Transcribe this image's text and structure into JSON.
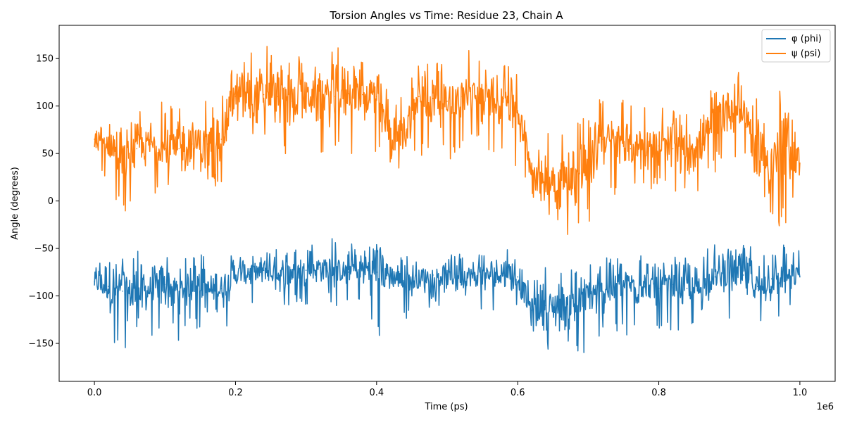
{
  "chart_data": {
    "type": "line",
    "title": "Torsion Angles vs Time: Residue 23, Chain A",
    "xlabel": "Time (ps)",
    "ylabel": "Angle (degrees)",
    "x_offset_label": "1e6",
    "xlim": [
      -0.05,
      1.05
    ],
    "ylim": [
      -190,
      185
    ],
    "x_ticks": [
      0.0,
      0.2,
      0.4,
      0.6,
      0.8,
      1.0
    ],
    "x_tick_labels": [
      "0.0",
      "0.2",
      "0.4",
      "0.6",
      "0.8",
      "1.0"
    ],
    "y_ticks": [
      -150,
      -100,
      -50,
      0,
      50,
      100,
      150
    ],
    "y_tick_labels": [
      "−150",
      "−100",
      "−50",
      "0",
      "50",
      "100",
      "150"
    ],
    "grid": false,
    "legend_position": "top-right",
    "x": [
      0.0,
      0.02,
      0.04,
      0.06,
      0.08,
      0.1,
      0.12,
      0.14,
      0.16,
      0.18,
      0.2,
      0.22,
      0.24,
      0.26,
      0.28,
      0.3,
      0.32,
      0.34,
      0.36,
      0.38,
      0.4,
      0.42,
      0.44,
      0.46,
      0.48,
      0.5,
      0.52,
      0.54,
      0.56,
      0.58,
      0.6,
      0.62,
      0.64,
      0.66,
      0.68,
      0.7,
      0.72,
      0.74,
      0.76,
      0.78,
      0.8,
      0.82,
      0.84,
      0.86,
      0.88,
      0.9,
      0.92,
      0.94,
      0.96,
      0.98,
      1.0
    ],
    "series": [
      {
        "name": "φ (phi)",
        "color": "#1f77b4",
        "values": [
          -85,
          -90,
          -95,
          -100,
          -92,
          -88,
          -95,
          -85,
          -95,
          -92,
          -78,
          -75,
          -73,
          -78,
          -75,
          -73,
          -70,
          -72,
          -75,
          -70,
          -75,
          -78,
          -85,
          -82,
          -78,
          -80,
          -78,
          -80,
          -78,
          -76,
          -80,
          -115,
          -110,
          -112,
          -110,
          -100,
          -95,
          -90,
          -88,
          -90,
          -92,
          -88,
          -92,
          -92,
          -80,
          -75,
          -78,
          -90,
          -82,
          -78,
          -80
        ],
        "min": [
          -130,
          -165,
          -160,
          -170,
          -150,
          -145,
          -150,
          -135,
          -140,
          -150,
          -120,
          -110,
          -115,
          -120,
          -110,
          -110,
          -100,
          -110,
          -115,
          -110,
          -165,
          -120,
          -125,
          -120,
          -110,
          -115,
          -135,
          -120,
          -115,
          -115,
          -120,
          -160,
          -165,
          -170,
          -165,
          -160,
          -150,
          -140,
          -145,
          -135,
          -140,
          -135,
          -140,
          -145,
          -125,
          -140,
          -120,
          -140,
          -150,
          -125,
          -120
        ],
        "max": [
          -62,
          -60,
          -58,
          -50,
          -60,
          -55,
          -60,
          -58,
          -55,
          -60,
          -55,
          -52,
          -50,
          -50,
          -50,
          -47,
          -45,
          -30,
          -45,
          -45,
          -45,
          -55,
          -58,
          -55,
          -50,
          -50,
          -55,
          -55,
          -52,
          -50,
          -55,
          -75,
          -70,
          -72,
          -70,
          -55,
          -60,
          -55,
          -60,
          -55,
          -60,
          -55,
          -58,
          -55,
          -45,
          -50,
          -40,
          -45,
          -50,
          -40,
          -52
        ]
      },
      {
        "name": "ψ (psi)",
        "color": "#ff7f0e",
        "values": [
          65,
          60,
          45,
          55,
          60,
          55,
          55,
          60,
          60,
          65,
          110,
          108,
          112,
          110,
          105,
          110,
          112,
          110,
          115,
          112,
          110,
          65,
          75,
          110,
          108,
          105,
          110,
          110,
          105,
          108,
          95,
          35,
          25,
          20,
          25,
          40,
          65,
          60,
          55,
          60,
          58,
          55,
          55,
          60,
          90,
          100,
          95,
          60,
          40,
          65,
          40
        ],
        "min": [
          30,
          15,
          -20,
          0,
          5,
          10,
          5,
          10,
          5,
          20,
          55,
          50,
          60,
          45,
          40,
          50,
          45,
          45,
          50,
          45,
          45,
          40,
          20,
          40,
          35,
          40,
          55,
          60,
          50,
          45,
          30,
          0,
          -20,
          -30,
          -40,
          -30,
          10,
          5,
          10,
          15,
          10,
          5,
          10,
          10,
          30,
          40,
          45,
          10,
          -25,
          -35,
          -5
        ],
        "max": [
          95,
          100,
          90,
          100,
          105,
          105,
          110,
          110,
          120,
          110,
          150,
          160,
          170,
          150,
          155,
          150,
          160,
          168,
          155,
          150,
          165,
          110,
          130,
          150,
          150,
          140,
          160,
          165,
          150,
          145,
          140,
          75,
          85,
          80,
          90,
          100,
          110,
          105,
          110,
          115,
          100,
          100,
          110,
          115,
          140,
          150,
          135,
          120,
          130,
          160,
          90
        ]
      }
    ]
  }
}
